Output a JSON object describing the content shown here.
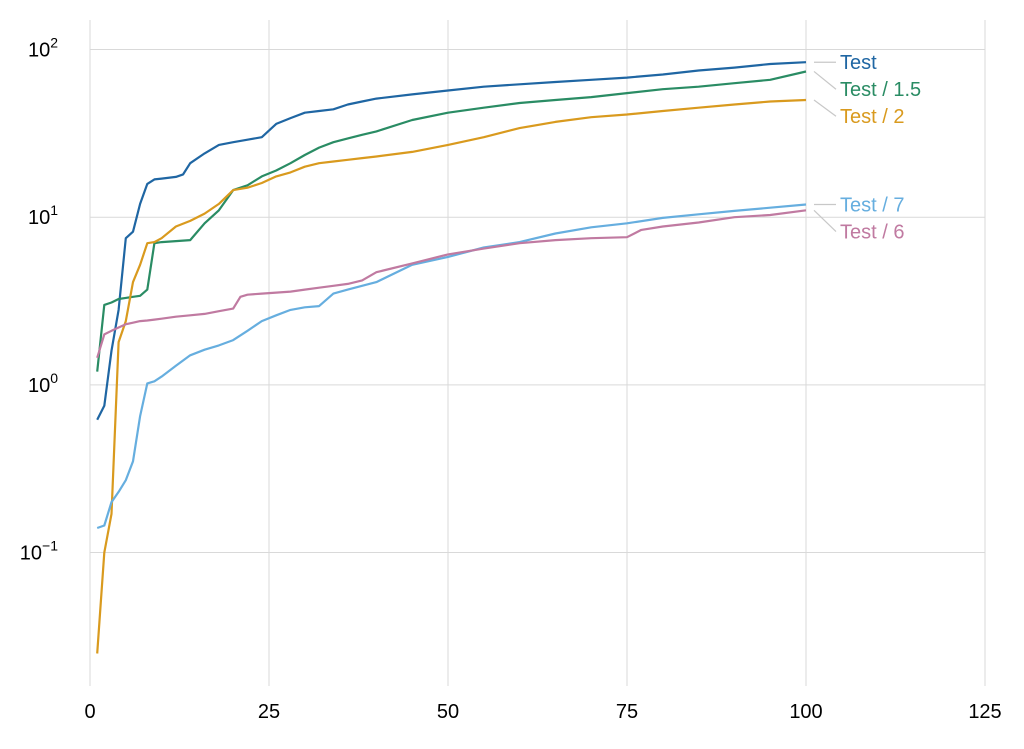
{
  "chart_data": {
    "type": "line",
    "xlabel": "",
    "ylabel": "",
    "xlim": [
      0,
      125
    ],
    "ylim": [
      0.016,
      150
    ],
    "yscale": "log",
    "grid": true,
    "legend_placement": "right, labels at line ends",
    "x_ticks": [
      {
        "value": 0,
        "label": "0"
      },
      {
        "value": 25,
        "label": "25"
      },
      {
        "value": 50,
        "label": "50"
      },
      {
        "value": 75,
        "label": "75"
      },
      {
        "value": 100,
        "label": "100"
      },
      {
        "value": 125,
        "label": "125"
      }
    ],
    "y_ticks": [
      {
        "value": 0.1,
        "base": "10",
        "exp": "−1"
      },
      {
        "value": 1,
        "base": "10",
        "exp": "0"
      },
      {
        "value": 10,
        "base": "10",
        "exp": "1"
      },
      {
        "value": 100,
        "base": "10",
        "exp": "2"
      }
    ],
    "series": [
      {
        "name": "Test",
        "color": "#1f66a3",
        "x": [
          1,
          2,
          3,
          4,
          5,
          6,
          7,
          8,
          9,
          10,
          12,
          13,
          14,
          16,
          18,
          20,
          22,
          24,
          26,
          28,
          30,
          32,
          34,
          36,
          38,
          40,
          45,
          50,
          55,
          60,
          65,
          70,
          75,
          80,
          85,
          90,
          95,
          100
        ],
        "y": [
          0.62,
          0.75,
          1.6,
          2.8,
          7.5,
          8.2,
          12,
          15.8,
          16.8,
          17,
          17.4,
          18,
          21,
          24,
          27,
          28,
          29,
          30,
          36,
          39,
          42,
          43,
          44,
          47,
          49,
          51,
          54,
          57,
          60,
          62,
          64,
          66,
          68,
          71,
          75,
          78,
          82,
          84
        ]
      },
      {
        "name": "Test / 1.5",
        "color": "#2a8c64",
        "x": [
          1,
          2,
          3,
          4,
          5,
          6,
          7,
          8,
          9,
          10,
          12,
          14,
          16,
          18,
          20,
          22,
          24,
          26,
          28,
          30,
          32,
          34,
          36,
          38,
          40,
          45,
          50,
          55,
          60,
          65,
          70,
          75,
          80,
          85,
          90,
          95,
          100
        ],
        "y": [
          1.2,
          3.0,
          3.1,
          3.25,
          3.3,
          3.35,
          3.4,
          3.7,
          7.0,
          7.1,
          7.2,
          7.3,
          9.2,
          11,
          14.5,
          15.5,
          17.5,
          19,
          21,
          23.5,
          26,
          28,
          29.5,
          31,
          32.5,
          38,
          42,
          45,
          48,
          50,
          52,
          55,
          58,
          60,
          63,
          66,
          74
        ]
      },
      {
        "name": "Test / 2",
        "color": "#d99a1e",
        "x": [
          1,
          2,
          3,
          4,
          5,
          6,
          7,
          8,
          9,
          10,
          12,
          14,
          16,
          18,
          20,
          22,
          24,
          26,
          28,
          30,
          32,
          34,
          36,
          38,
          40,
          45,
          50,
          55,
          60,
          65,
          70,
          75,
          80,
          85,
          90,
          95,
          100
        ],
        "y": [
          0.025,
          0.1,
          0.17,
          1.8,
          2.4,
          4.1,
          5.2,
          7.0,
          7.1,
          7.5,
          8.8,
          9.5,
          10.5,
          12,
          14.5,
          15,
          16,
          17.5,
          18.5,
          20,
          21,
          21.5,
          22,
          22.5,
          23,
          24.5,
          27,
          30,
          34,
          37,
          39.5,
          41,
          43,
          45,
          47,
          49,
          50
        ]
      },
      {
        "name": "Test / 7",
        "color": "#66aedf",
        "x": [
          1,
          2,
          3,
          4,
          5,
          6,
          7,
          8,
          9,
          10,
          12,
          14,
          16,
          18,
          20,
          22,
          24,
          26,
          28,
          30,
          32,
          34,
          36,
          38,
          40,
          45,
          50,
          55,
          60,
          65,
          70,
          75,
          80,
          85,
          90,
          95,
          100
        ],
        "y": [
          0.14,
          0.145,
          0.2,
          0.23,
          0.27,
          0.35,
          0.65,
          1.02,
          1.05,
          1.12,
          1.3,
          1.5,
          1.62,
          1.72,
          1.85,
          2.1,
          2.4,
          2.6,
          2.8,
          2.9,
          2.95,
          3.5,
          3.7,
          3.9,
          4.1,
          5.2,
          5.8,
          6.6,
          7.1,
          8.0,
          8.7,
          9.2,
          9.9,
          10.4,
          10.9,
          11.4,
          11.9
        ]
      },
      {
        "name": "Test / 6",
        "color": "#c07aa1",
        "x": [
          1,
          2,
          3,
          4,
          5,
          6,
          7,
          8,
          9,
          10,
          12,
          14,
          16,
          18,
          20,
          21,
          22,
          24,
          26,
          28,
          30,
          32,
          34,
          36,
          38,
          40,
          45,
          50,
          55,
          60,
          65,
          70,
          75,
          77,
          80,
          85,
          90,
          95,
          100
        ],
        "y": [
          1.45,
          2.0,
          2.1,
          2.2,
          2.3,
          2.35,
          2.4,
          2.42,
          2.45,
          2.48,
          2.55,
          2.6,
          2.65,
          2.75,
          2.85,
          3.35,
          3.45,
          3.5,
          3.55,
          3.6,
          3.7,
          3.8,
          3.9,
          4.0,
          4.2,
          4.7,
          5.3,
          6.0,
          6.5,
          7.0,
          7.3,
          7.5,
          7.6,
          8.4,
          8.8,
          9.3,
          10.0,
          10.3,
          11.0
        ]
      }
    ]
  }
}
